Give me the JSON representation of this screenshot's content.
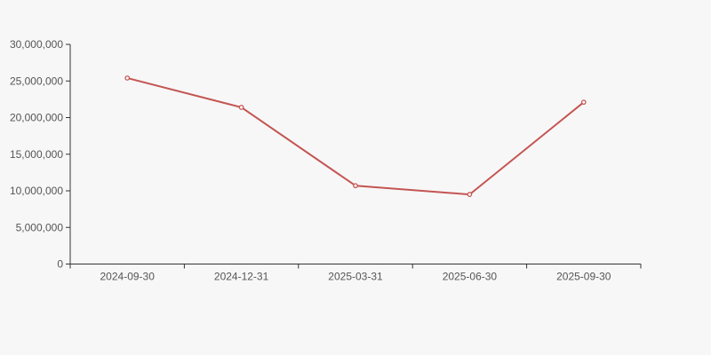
{
  "chart_data": {
    "type": "line",
    "title": "",
    "xlabel": "",
    "ylabel": "",
    "categories": [
      "2024-09-30",
      "2024-12-31",
      "2025-03-31",
      "2025-06-30",
      "2025-09-30"
    ],
    "values": [
      25400000,
      21400000,
      10700000,
      9500000,
      22100000
    ],
    "ylim": [
      0,
      30000000
    ],
    "ytick_interval": 5000000,
    "ytick_labels": [
      "0",
      "5,000,000",
      "10,000,000",
      "15,000,000",
      "20,000,000",
      "25,000,000",
      "30,000,000"
    ],
    "grid": false,
    "legend": "none",
    "marker": "hollow-circle",
    "colors": {
      "background": "#f7f7f7",
      "line": "#c45552",
      "marker_fill": "#ffffff",
      "axis": "#333333",
      "label": "#555555"
    }
  }
}
